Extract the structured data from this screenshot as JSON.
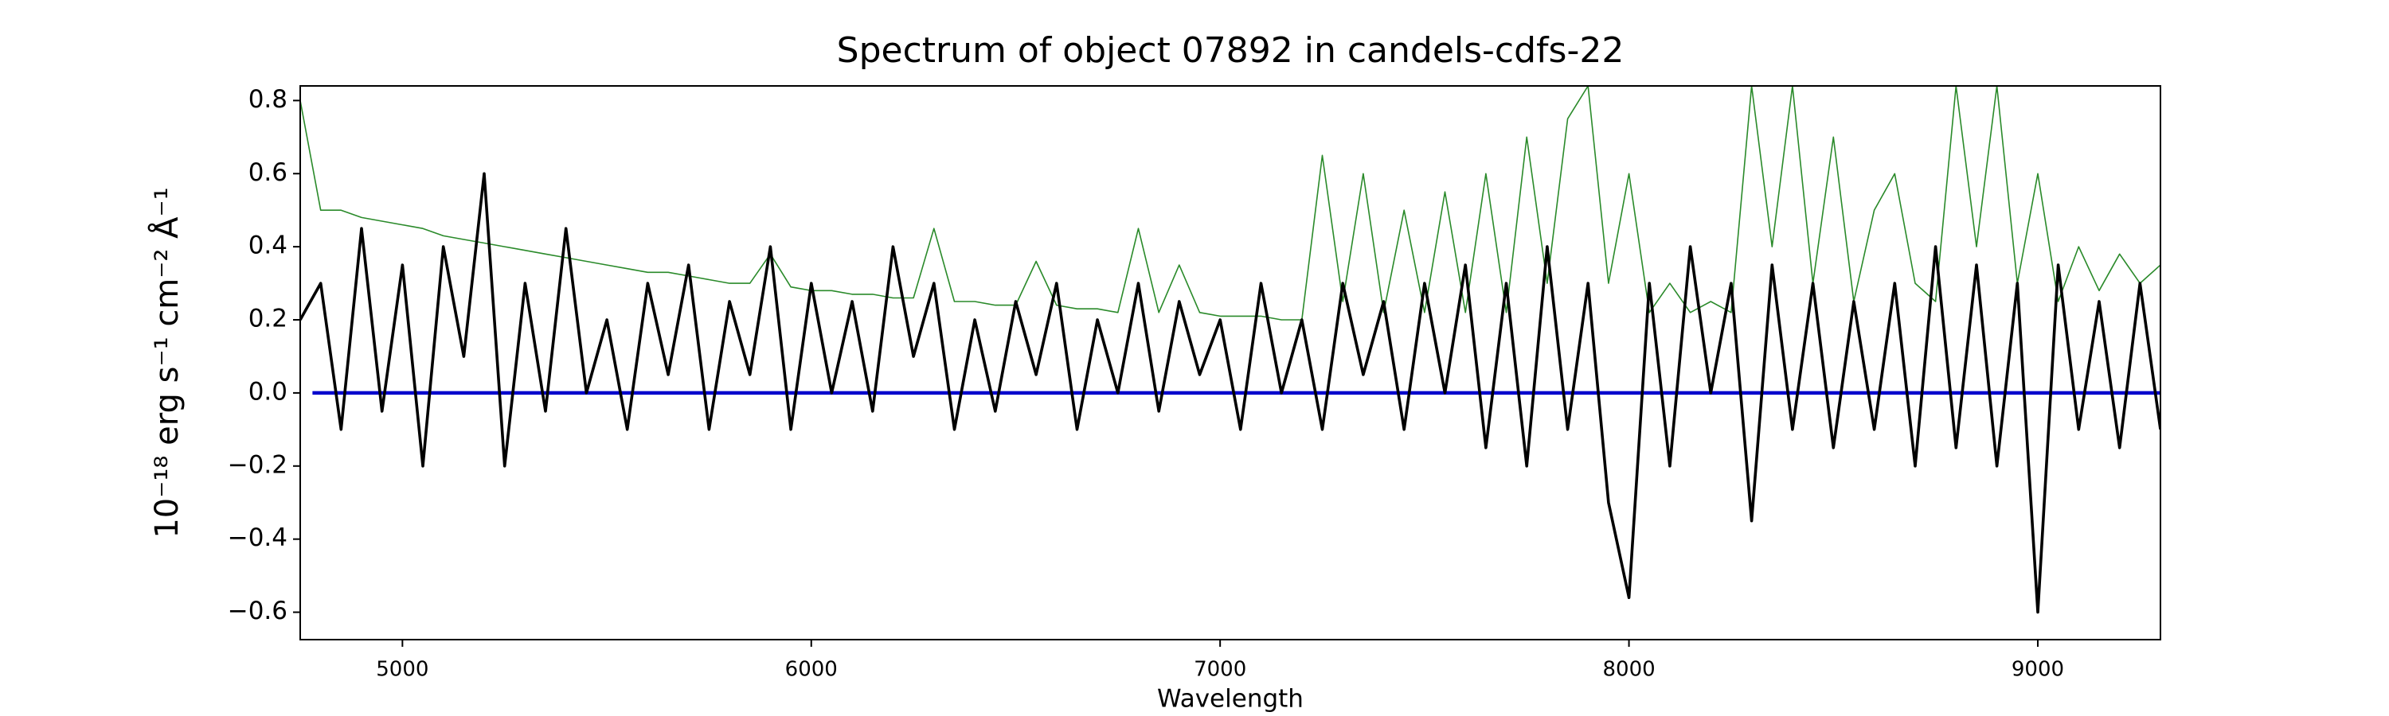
{
  "chart_data": {
    "type": "line",
    "title": "Spectrum of object 07892 in candels-cdfs-22",
    "xlabel": "Wavelength",
    "ylabel": "10⁻¹⁸ erg s⁻¹ cm⁻² Å⁻¹",
    "x": [
      4750,
      4800,
      4850,
      4900,
      4950,
      5000,
      5050,
      5100,
      5150,
      5200,
      5250,
      5300,
      5350,
      5400,
      5450,
      5500,
      5550,
      5600,
      5650,
      5700,
      5750,
      5800,
      5850,
      5900,
      5950,
      6000,
      6050,
      6100,
      6150,
      6200,
      6250,
      6300,
      6350,
      6400,
      6450,
      6500,
      6550,
      6600,
      6650,
      6700,
      6750,
      6800,
      6850,
      6900,
      6950,
      7000,
      7050,
      7100,
      7150,
      7200,
      7250,
      7300,
      7350,
      7400,
      7450,
      7500,
      7550,
      7600,
      7650,
      7700,
      7750,
      7800,
      7850,
      7900,
      7950,
      8000,
      8050,
      8100,
      8150,
      8200,
      8250,
      8300,
      8350,
      8400,
      8450,
      8500,
      8550,
      8600,
      8650,
      8700,
      8750,
      8800,
      8850,
      8900,
      8950,
      9000,
      9050,
      9100,
      9150,
      9200,
      9250,
      9300
    ],
    "series": [
      {
        "color": "#2a8a2a",
        "values": [
          0.8,
          0.5,
          0.5,
          0.48,
          0.47,
          0.46,
          0.45,
          0.43,
          0.42,
          0.41,
          0.4,
          0.39,
          0.38,
          0.37,
          0.36,
          0.35,
          0.34,
          0.33,
          0.33,
          0.32,
          0.31,
          0.3,
          0.3,
          0.38,
          0.29,
          0.28,
          0.28,
          0.27,
          0.27,
          0.26,
          0.26,
          0.45,
          0.25,
          0.25,
          0.24,
          0.24,
          0.36,
          0.24,
          0.23,
          0.23,
          0.22,
          0.45,
          0.22,
          0.35,
          0.22,
          0.21,
          0.21,
          0.21,
          0.2,
          0.2,
          0.65,
          0.25,
          0.6,
          0.22,
          0.5,
          0.22,
          0.55,
          0.22,
          0.6,
          0.22,
          0.7,
          0.3,
          0.75,
          0.84,
          0.3,
          0.6,
          0.22,
          0.3,
          0.22,
          0.25,
          0.22,
          0.84,
          0.4,
          0.84,
          0.3,
          0.7,
          0.25,
          0.5,
          0.6,
          0.3,
          0.25,
          0.84,
          0.4,
          0.84,
          0.3,
          0.6,
          0.25,
          0.4,
          0.28,
          0.38,
          0.3,
          0.35
        ]
      },
      {
        "color": "#0000cc",
        "x": [
          4780,
          9300
        ],
        "values": [
          0,
          0
        ]
      },
      {
        "color": "#000000",
        "values": [
          0.2,
          0.3,
          -0.1,
          0.45,
          -0.05,
          0.35,
          -0.2,
          0.4,
          0.1,
          0.6,
          -0.2,
          0.3,
          -0.05,
          0.45,
          0.0,
          0.2,
          -0.1,
          0.3,
          0.05,
          0.35,
          -0.1,
          0.25,
          0.05,
          0.4,
          -0.1,
          0.3,
          0.0,
          0.25,
          -0.05,
          0.4,
          0.1,
          0.3,
          -0.1,
          0.2,
          -0.05,
          0.25,
          0.05,
          0.3,
          -0.1,
          0.2,
          0.0,
          0.3,
          -0.05,
          0.25,
          0.05,
          0.2,
          -0.1,
          0.3,
          0.0,
          0.2,
          -0.1,
          0.3,
          0.05,
          0.25,
          -0.1,
          0.3,
          0.0,
          0.35,
          -0.15,
          0.3,
          -0.2,
          0.4,
          -0.1,
          0.3,
          -0.3,
          -0.56,
          0.3,
          -0.2,
          0.4,
          0.0,
          0.3,
          -0.35,
          0.35,
          -0.1,
          0.3,
          -0.15,
          0.25,
          -0.1,
          0.3,
          -0.2,
          0.4,
          -0.15,
          0.35,
          -0.2,
          0.3,
          -0.6,
          0.35,
          -0.1,
          0.25,
          -0.15,
          0.3,
          -0.1
        ]
      }
    ],
    "xlim": [
      4750,
      9300
    ],
    "ylim": [
      -0.675,
      0.84
    ],
    "xticks": [
      5000,
      6000,
      7000,
      8000,
      9000
    ],
    "yticks": [
      {
        "value": -0.6,
        "label": "−0.6"
      },
      {
        "value": -0.4,
        "label": "−0.4"
      },
      {
        "value": -0.2,
        "label": "−0.2"
      },
      {
        "value": 0,
        "label": "0.0"
      },
      {
        "value": 0.2,
        "label": "0.2"
      },
      {
        "value": 0.4,
        "label": "0.4"
      },
      {
        "value": 0.6,
        "label": "0.6"
      },
      {
        "value": 0.8,
        "label": "0.8"
      }
    ]
  }
}
